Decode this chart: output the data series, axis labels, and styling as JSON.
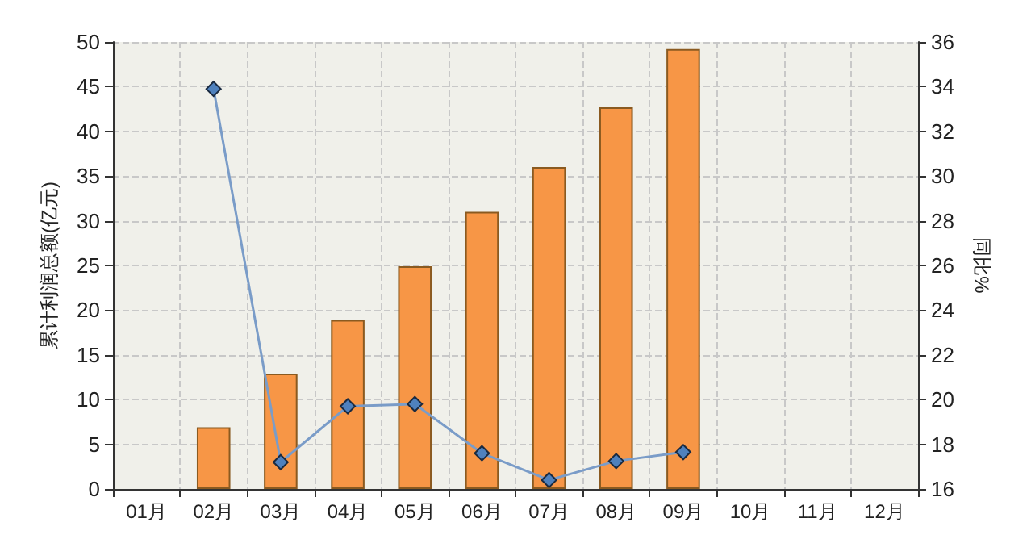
{
  "chart_data": {
    "type": "bar",
    "categories": [
      "01月",
      "02月",
      "03月",
      "04月",
      "05月",
      "06月",
      "07月",
      "08月",
      "09月",
      "10月",
      "11月",
      "12月"
    ],
    "ylabel": "累计利润总额(亿元)",
    "y2label": "同比%",
    "ylim": [
      0,
      50
    ],
    "yticks": [
      0,
      5,
      10,
      15,
      20,
      25,
      30,
      35,
      40,
      45,
      50
    ],
    "y2lim": [
      16,
      36
    ],
    "y2ticks": [
      16,
      18,
      20,
      22,
      24,
      26,
      28,
      30,
      32,
      34,
      36
    ],
    "grid": true,
    "series": [
      {
        "color": "#f79646",
        "values": [
          null,
          6.9,
          12.9,
          18.9,
          24.9,
          31.0,
          36.0,
          42.7,
          49.2,
          null,
          null,
          null
        ]
      },
      {
        "type": "line",
        "axis": "y2",
        "color": "#4f81bd",
        "marker": "diamond",
        "line_style": "solid",
        "values": [
          null,
          33.9,
          17.2,
          19.7,
          19.8,
          17.6,
          16.4,
          17.25,
          17.65,
          null,
          null,
          null
        ]
      }
    ]
  }
}
